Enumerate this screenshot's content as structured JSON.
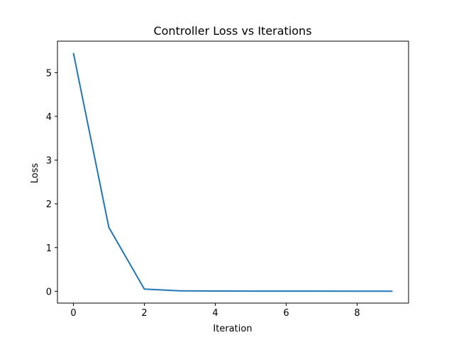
{
  "chart_data": {
    "type": "line",
    "title": "Controller Loss vs Iterations",
    "xlabel": "Iteration",
    "ylabel": "Loss",
    "xlim": [
      -0.45,
      9.45
    ],
    "ylim": [
      -0.27,
      5.72
    ],
    "grid": false,
    "x_ticks": [
      0,
      2,
      4,
      6,
      8
    ],
    "x_tick_labels": [
      "0",
      "2",
      "4",
      "6",
      "8"
    ],
    "y_ticks": [
      0,
      1,
      2,
      3,
      4,
      5
    ],
    "y_tick_labels": [
      "0",
      "1",
      "2",
      "3",
      "4",
      "5"
    ],
    "series": [
      {
        "color": "#1f77b4",
        "x": [
          0,
          1,
          2,
          3,
          4,
          5,
          6,
          7,
          8,
          9
        ],
        "y": [
          5.45,
          1.46,
          0.05,
          0.01,
          0.005,
          0.004,
          0.003,
          0.003,
          0.002,
          0.002
        ]
      }
    ]
  }
}
